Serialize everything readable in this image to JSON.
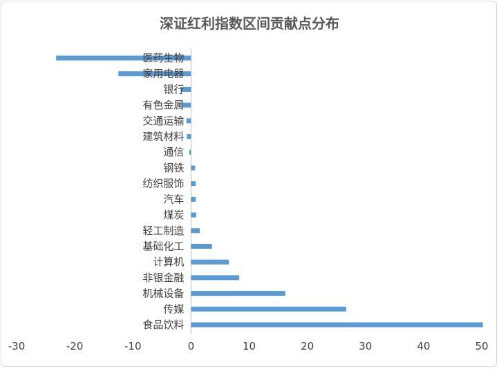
{
  "chart_data": {
    "type": "bar",
    "orientation": "horizontal",
    "title": "深证红利指数区间贡献点分布",
    "categories": [
      "医药生物",
      "家用电器",
      "银行",
      "有色金属",
      "交通运输",
      "建筑材料",
      "通信",
      "钢铁",
      "纺织服饰",
      "汽车",
      "煤炭",
      "轻工制造",
      "基础化工",
      "计算机",
      "非银金融",
      "机械设备",
      "传媒",
      "食品饮料"
    ],
    "values": [
      -23.2,
      -12.5,
      -1.8,
      -1.6,
      -0.8,
      -0.7,
      -0.3,
      0.7,
      0.8,
      0.8,
      0.9,
      1.5,
      3.6,
      6.5,
      8.3,
      16.2,
      26.7,
      50.2
    ],
    "xlim": [
      -30,
      50
    ],
    "xticks": [
      "-30",
      "-20",
      "-10",
      "0",
      "10",
      "20",
      "30",
      "40",
      "50"
    ],
    "xlabel": "",
    "ylabel": "",
    "grid": false,
    "legend": "none",
    "bar_color": "#5b9bd5"
  }
}
